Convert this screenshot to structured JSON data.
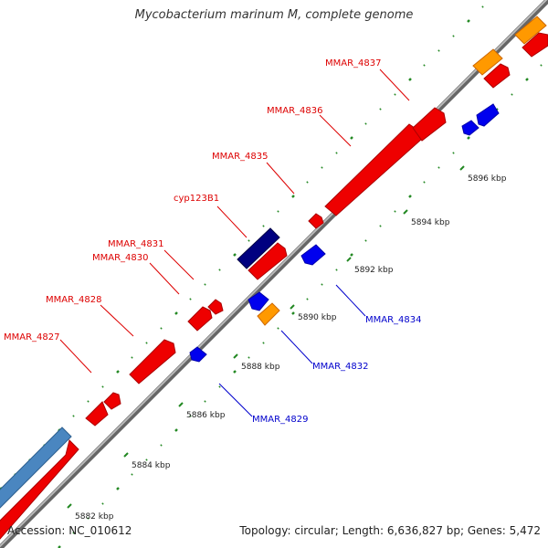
{
  "title": "Mycobacterium marinum M, complete genome",
  "footer": {
    "accession": "Accession: NC_010612",
    "summary": "Topology: circular; Length: 6,636,827 bp; Genes: 5,472"
  },
  "ticks": [
    {
      "label": "5882 kbp"
    },
    {
      "label": "5884 kbp"
    },
    {
      "label": "5886 kbp"
    },
    {
      "label": "5888 kbp"
    },
    {
      "label": "5890 kbp"
    },
    {
      "label": "5892 kbp"
    },
    {
      "label": "5894 kbp"
    },
    {
      "label": "5896 kbp"
    }
  ],
  "gene_labels": [
    {
      "name": "MMAR_4827",
      "color": "#dd0000"
    },
    {
      "name": "MMAR_4828",
      "color": "#dd0000"
    },
    {
      "name": "MMAR_4830",
      "color": "#dd0000"
    },
    {
      "name": "MMAR_4831",
      "color": "#dd0000"
    },
    {
      "name": "cyp123B1",
      "color": "#dd0000"
    },
    {
      "name": "MMAR_4835",
      "color": "#dd0000"
    },
    {
      "name": "MMAR_4836",
      "color": "#dd0000"
    },
    {
      "name": "MMAR_4837",
      "color": "#dd0000"
    },
    {
      "name": "MMAR_4829",
      "color": "#0000cc"
    },
    {
      "name": "MMAR_4832",
      "color": "#0000cc"
    },
    {
      "name": "MMAR_4834",
      "color": "#0000cc"
    }
  ],
  "colors": {
    "forward_gene": "#ee0000",
    "reverse_gene": "#0000ee",
    "rna_gene": "#ff9900",
    "other_gene": "#000080",
    "feature_track": "#4a86c0",
    "backbone": "#999999",
    "tick": "#228822"
  }
}
